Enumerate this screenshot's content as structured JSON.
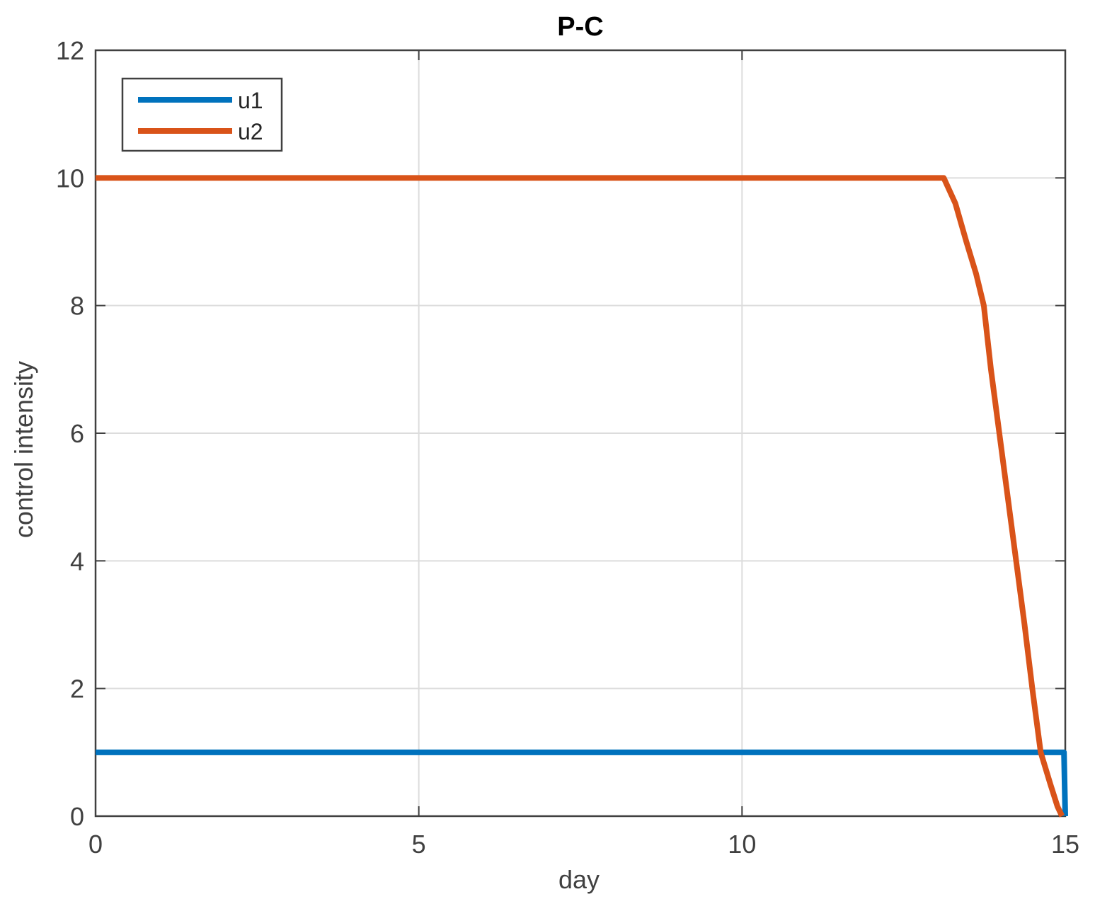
{
  "chart_data": {
    "type": "line",
    "title": "P-C",
    "x_label": "day",
    "y_label": "control intensity",
    "series": [
      {
        "name": "u1",
        "color": "#0072bd",
        "x": [
          0,
          14.98,
          15
        ],
        "values": [
          1,
          1,
          0
        ]
      },
      {
        "name": "u2",
        "color": "#d95319",
        "x": [
          0,
          13.12,
          13.3,
          13.47,
          13.62,
          13.74,
          13.85,
          13.98,
          14.11,
          14.24,
          14.37,
          14.49,
          14.62,
          14.77,
          14.88,
          14.95
        ],
        "values": [
          10,
          10,
          9.6,
          9,
          8.5,
          8,
          7,
          6,
          5,
          4,
          3,
          2,
          1,
          0.5,
          0.15,
          0
        ]
      }
    ],
    "xlim": [
      0,
      15
    ],
    "xticks": [
      0,
      5,
      10,
      15
    ],
    "ylim": [
      0,
      12
    ],
    "yticks": [
      0,
      2,
      4,
      6,
      8,
      10,
      12
    ],
    "grid": true,
    "legend": "upper left"
  }
}
